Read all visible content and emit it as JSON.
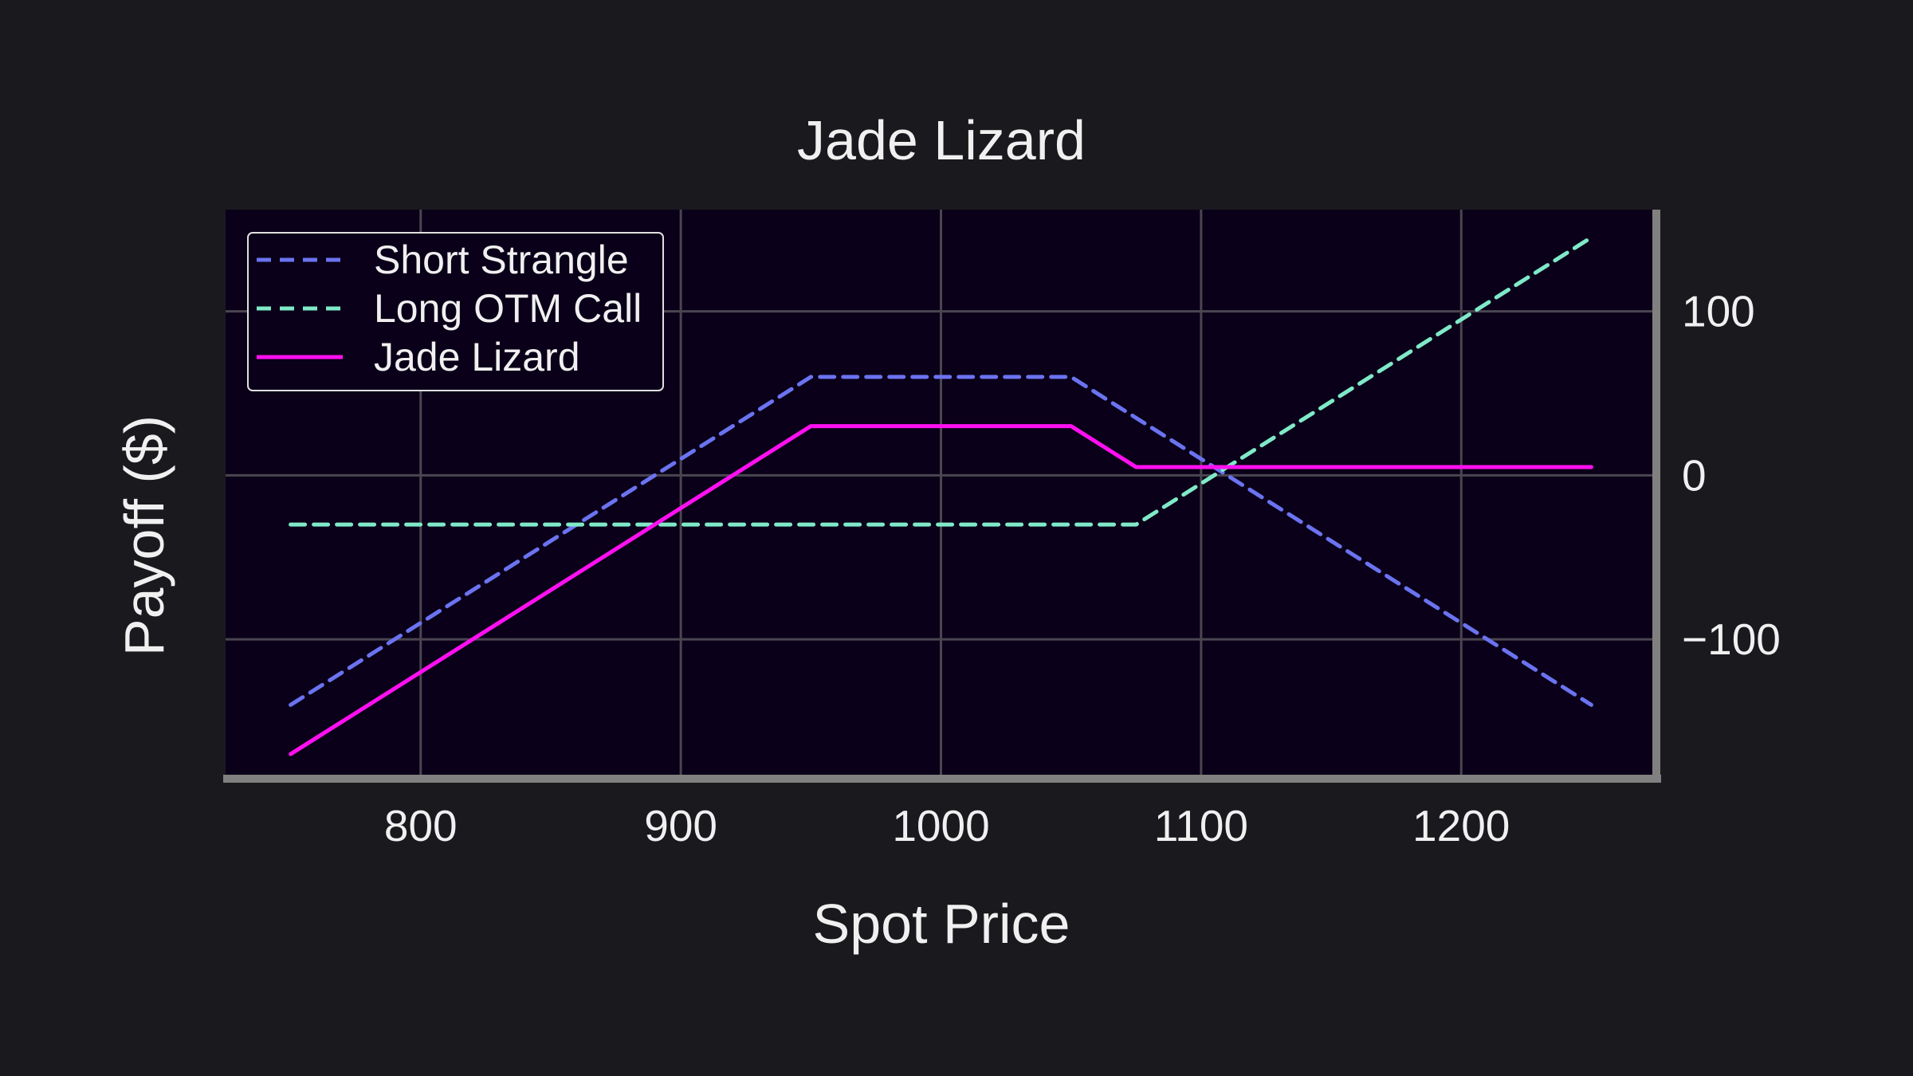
{
  "chart_data": {
    "type": "line",
    "title": "Jade Lizard",
    "xlabel": "Spot Price",
    "ylabel": "Payoff ($)",
    "xlim": [
      725,
      1275
    ],
    "ylim": [
      -185,
      162
    ],
    "x_ticks": [
      800,
      900,
      1000,
      1100,
      1200
    ],
    "y_ticks": [
      -100,
      0,
      100
    ],
    "y_tick_labels": [
      "−100",
      "0",
      "100"
    ],
    "y_axis_side": "right",
    "grid": true,
    "legend_position": "top-left",
    "series": [
      {
        "name": "Short Strangle",
        "style": "dashed",
        "color": "#6b73f0",
        "x": [
          750,
          950,
          1050,
          1250
        ],
        "y": [
          -140,
          60,
          60,
          -140
        ]
      },
      {
        "name": "Long OTM Call",
        "style": "dashed",
        "color": "#7fe9c8",
        "x": [
          750,
          1075,
          1250
        ],
        "y": [
          -30,
          -30,
          145
        ]
      },
      {
        "name": "Jade Lizard",
        "style": "solid",
        "color": "#ff10f0",
        "x": [
          750,
          950,
          1050,
          1075,
          1250
        ],
        "y": [
          -170,
          30,
          30,
          5,
          5
        ]
      }
    ]
  }
}
